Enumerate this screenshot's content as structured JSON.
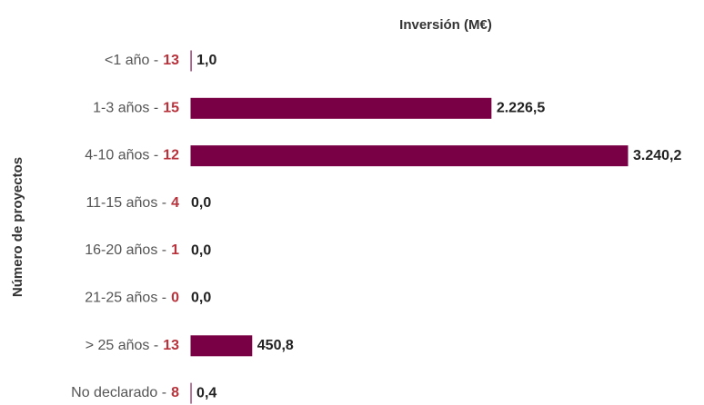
{
  "chart_data": {
    "type": "bar",
    "orientation": "horizontal",
    "title": "Inversión (M€)",
    "y_label": "Número de proyectos",
    "categories": [
      "<1 año -",
      "1-3 años -",
      "4-10 años -",
      "11-15 años -",
      "16-20 años -",
      "21-25 años -",
      "> 25 años -",
      "No declarado -"
    ],
    "counts": [
      13,
      15,
      12,
      4,
      1,
      0,
      13,
      8
    ],
    "values": [
      1.0,
      2226.5,
      3240.2,
      0.0,
      0.0,
      0.0,
      450.8,
      0.4
    ],
    "value_labels": [
      "1,0",
      "2.226,5",
      "3.240,2",
      "0,0",
      "0,0",
      "0,0",
      "450,8",
      "0,4"
    ],
    "color": "#7a0045"
  }
}
